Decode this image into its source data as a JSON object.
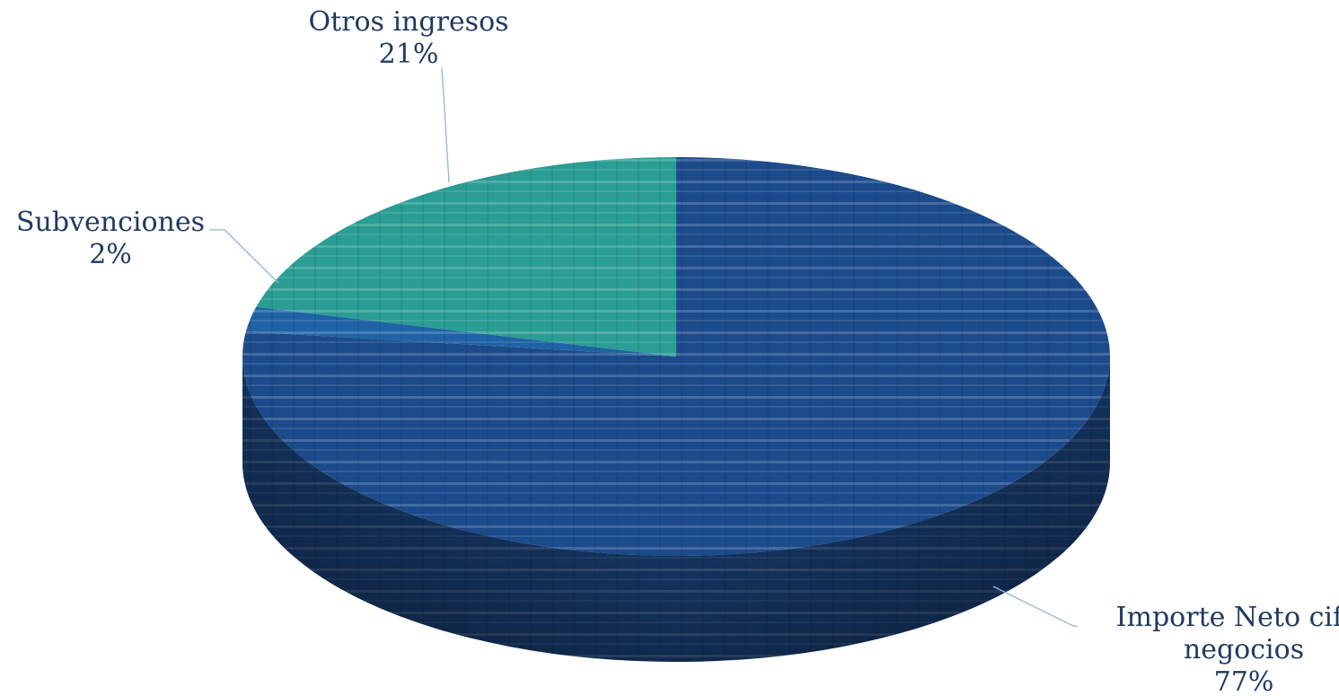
{
  "chart_data": {
    "type": "pie",
    "three_d": true,
    "legend": "none",
    "slices": [
      {
        "label_lines": [
          "Importe Neto cifra",
          "negocios"
        ],
        "value": 77,
        "value_text": "77%",
        "color": "#1c4b8c",
        "texture_color": "#6f8fc6"
      },
      {
        "label_lines": [
          "Subvenciones"
        ],
        "value": 2,
        "value_text": "2%",
        "color": "#1f63a6",
        "texture_color": "#7aa7d6"
      },
      {
        "label_lines": [
          "Otros ingresos"
        ],
        "value": 21,
        "value_text": "21%",
        "color": "#2a9d94",
        "texture_color": "#a6e0d8"
      }
    ],
    "leader_line_color": "#8fb6d8"
  }
}
